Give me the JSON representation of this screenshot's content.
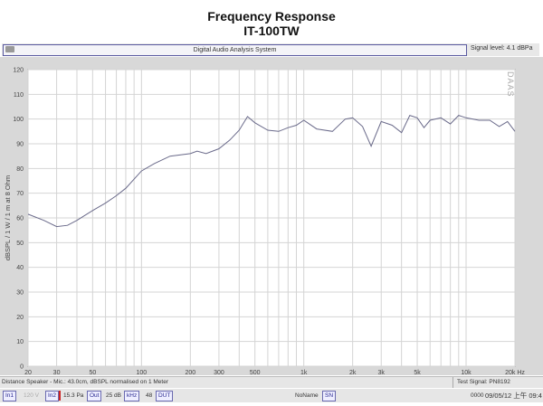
{
  "title": "Frequency Response",
  "subtitle": "IT-100TW",
  "app": {
    "title": "Digital Audio Analysis System",
    "signal_level": "Signal level:  4.1 dBPa",
    "watermark": "DAAS"
  },
  "status": {
    "left": "Distance Speaker - Mic.: 43.0cm, dBSPL normalised on 1 Meter",
    "right": "Test Signal: PN8192"
  },
  "bottom": {
    "in1": "In1",
    "in1_val": "120 V",
    "in2": "In2",
    "in2_val": "15.3 Pa",
    "out": "Out",
    "out_val": "25 dB",
    "khz": "kHz",
    "khz_val": "48",
    "dut": "DUT",
    "name": "NoName",
    "sn": "SN",
    "counter": "0000",
    "datetime": "09/05/12 上午 09:4"
  },
  "chart_data": {
    "type": "line",
    "title": "Frequency Response",
    "xlabel": "",
    "ylabel": "dBSPL / 1 W / 1 m at 8 Ohm",
    "xscale": "log",
    "xlim": [
      20,
      20000
    ],
    "ylim": [
      0,
      120
    ],
    "grid": true,
    "color": "#6a6a8a",
    "yticks": [
      0,
      10,
      20,
      30,
      40,
      50,
      60,
      70,
      80,
      90,
      100,
      110,
      120
    ],
    "xticks": [
      {
        "v": 20,
        "l": "20"
      },
      {
        "v": 30,
        "l": "30"
      },
      {
        "v": 50,
        "l": "50"
      },
      {
        "v": 100,
        "l": "100"
      },
      {
        "v": 200,
        "l": "200"
      },
      {
        "v": 300,
        "l": "300"
      },
      {
        "v": 500,
        "l": "500"
      },
      {
        "v": 1000,
        "l": "1k"
      },
      {
        "v": 2000,
        "l": "2k"
      },
      {
        "v": 3000,
        "l": "3k"
      },
      {
        "v": 5000,
        "l": "5k"
      },
      {
        "v": 10000,
        "l": "10k"
      },
      {
        "v": 20000,
        "l": "20k Hz"
      }
    ],
    "x": [
      20,
      25,
      30,
      35,
      40,
      50,
      60,
      70,
      80,
      100,
      120,
      150,
      200,
      220,
      250,
      300,
      350,
      400,
      450,
      500,
      600,
      700,
      800,
      900,
      1000,
      1200,
      1500,
      1800,
      2000,
      2300,
      2600,
      3000,
      3500,
      4000,
      4500,
      5000,
      5500,
      6000,
      7000,
      8000,
      9000,
      10000,
      12000,
      14000,
      16000,
      18000,
      20000
    ],
    "y": [
      61.5,
      59,
      56.5,
      57,
      59,
      63,
      66,
      69,
      72,
      79,
      82,
      85,
      86,
      87,
      86,
      88,
      91.5,
      95.5,
      101,
      98.5,
      95.5,
      95,
      96.5,
      97.5,
      99.5,
      96,
      95,
      100,
      100.5,
      97,
      89,
      99,
      97.5,
      94.5,
      101.5,
      100.5,
      96.5,
      99.5,
      100.5,
      98,
      101.5,
      100.5,
      99.5,
      99.5,
      97,
      99,
      95
    ]
  }
}
